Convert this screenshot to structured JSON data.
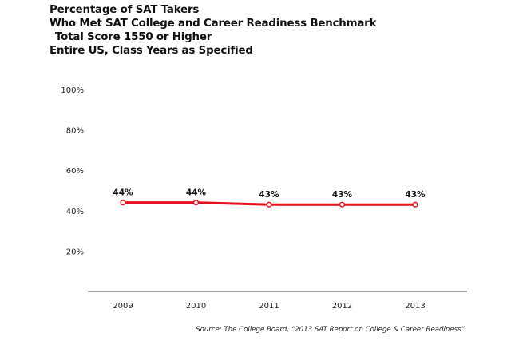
{
  "title_lines": [
    "Percentage of SAT Takers",
    "Who Met SAT College and Career Readiness Benchmark",
    "Total Score 1550 or Higher",
    "Entire US, Class Years as Specified"
  ],
  "source": "Source: The College Board, “2013 SAT Report on College & Career Readiness”",
  "chart_data": {
    "type": "line",
    "x": [
      "2009",
      "2010",
      "2011",
      "2012",
      "2013"
    ],
    "series": [
      {
        "values": [
          44,
          44,
          43,
          43,
          43
        ],
        "labels": [
          "44%",
          "44%",
          "43%",
          "43%",
          "43%"
        ],
        "color": "#e8101a"
      }
    ],
    "yticks": [
      "100%",
      "80%",
      "60%",
      "40%",
      "20%"
    ],
    "ytick_values": [
      100,
      80,
      60,
      40,
      20
    ],
    "ylim": [
      0,
      100
    ],
    "grid": false,
    "legend": "none"
  }
}
